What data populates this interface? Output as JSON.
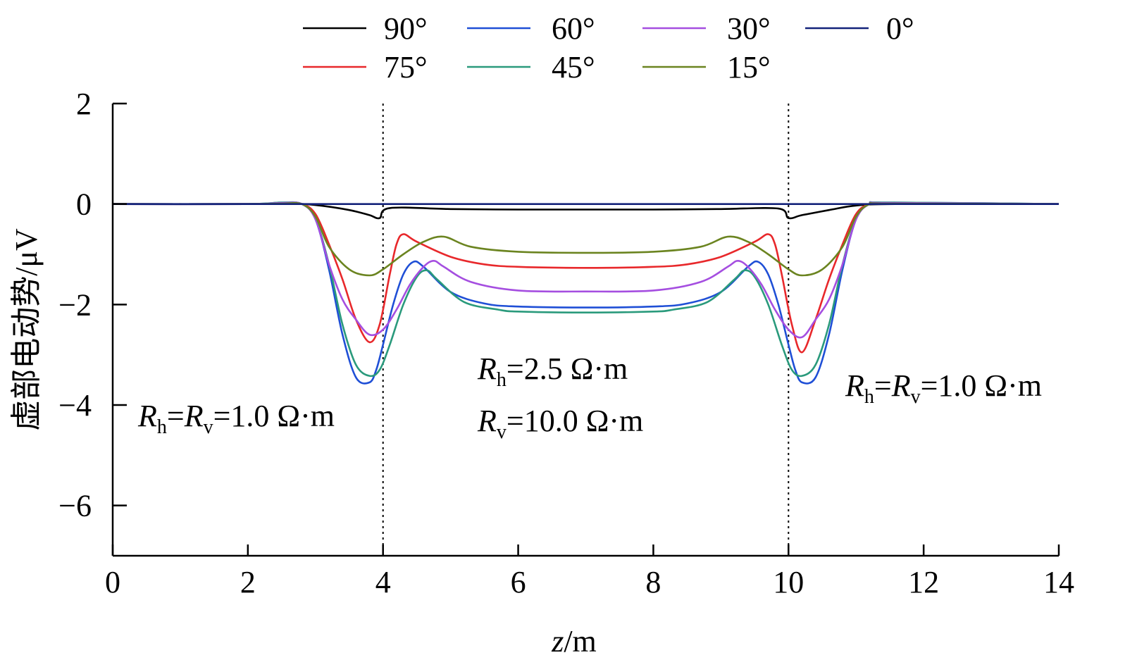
{
  "chart_data": {
    "type": "line",
    "xlabel": {
      "italic": "z",
      "rest": "/m"
    },
    "ylabel": "虚部电动势/μV",
    "xlim": [
      0,
      14
    ],
    "ylim": [
      -7,
      2
    ],
    "xticks": [
      "0",
      "2",
      "4",
      "6",
      "8",
      "10",
      "12",
      "14"
    ],
    "xtick_values": [
      0,
      2,
      4,
      6,
      8,
      10,
      12,
      14
    ],
    "yticks": [
      "2",
      "0",
      "−2",
      "−4",
      "−6"
    ],
    "ytick_values": [
      2,
      0,
      -2,
      -4,
      -6
    ],
    "boundaries": [
      4.0,
      10.0
    ],
    "legend": {
      "placement": "top"
    },
    "series": [
      {
        "name": "90°",
        "color": "#000000",
        "x": [
          0,
          2.0,
          2.6,
          3.0,
          3.5,
          3.8,
          3.95,
          4.1,
          5.0,
          6.0,
          7.0,
          8.0,
          9.0,
          9.85,
          10.0,
          10.2,
          10.6,
          11.0,
          11.6,
          14
        ],
        "y": [
          0,
          0,
          0.01,
          -0.02,
          -0.12,
          -0.22,
          -0.28,
          -0.08,
          -0.1,
          -0.11,
          -0.11,
          -0.11,
          -0.1,
          -0.09,
          -0.28,
          -0.22,
          -0.12,
          -0.03,
          0.0,
          0
        ]
      },
      {
        "name": "75°",
        "color": "#e8282b",
        "x": [
          0,
          2.0,
          2.5,
          2.8,
          3.0,
          3.2,
          3.4,
          3.6,
          3.8,
          3.95,
          4.1,
          4.2,
          4.3,
          4.5,
          5.0,
          5.5,
          6.0,
          7.0,
          8.0,
          8.5,
          9.0,
          9.5,
          9.7,
          9.8,
          9.9,
          10.05,
          10.2,
          10.4,
          10.6,
          10.8,
          11.0,
          11.2,
          11.5,
          14
        ],
        "y": [
          0,
          0,
          0.02,
          0.0,
          -0.2,
          -0.8,
          -1.5,
          -2.3,
          -2.75,
          -2.4,
          -1.4,
          -0.8,
          -0.6,
          -0.75,
          -1.05,
          -1.2,
          -1.25,
          -1.27,
          -1.25,
          -1.2,
          -1.05,
          -0.75,
          -0.6,
          -0.8,
          -1.4,
          -2.4,
          -2.95,
          -2.3,
          -1.5,
          -0.8,
          -0.2,
          0.0,
          0.02,
          0
        ]
      },
      {
        "name": "60°",
        "color": "#1f4fd6",
        "x": [
          0,
          2.0,
          2.5,
          2.8,
          3.0,
          3.2,
          3.4,
          3.6,
          3.8,
          3.9,
          4.0,
          4.15,
          4.3,
          4.45,
          4.6,
          5.0,
          5.5,
          6.0,
          7.0,
          8.0,
          8.5,
          9.0,
          9.4,
          9.55,
          9.7,
          9.85,
          10.0,
          10.1,
          10.2,
          10.4,
          10.6,
          10.8,
          11.0,
          11.2,
          11.5,
          14
        ],
        "y": [
          0,
          0,
          0.03,
          0.0,
          -0.3,
          -1.3,
          -2.6,
          -3.45,
          -3.55,
          -3.3,
          -2.8,
          -2.0,
          -1.4,
          -1.15,
          -1.25,
          -1.75,
          -1.98,
          -2.04,
          -2.06,
          -2.04,
          -1.98,
          -1.75,
          -1.25,
          -1.15,
          -1.4,
          -2.0,
          -2.8,
          -3.3,
          -3.55,
          -3.45,
          -2.6,
          -1.3,
          -0.3,
          0.0,
          0.03,
          0
        ]
      },
      {
        "name": "45°",
        "color": "#2a9a7c",
        "x": [
          0,
          2.0,
          2.5,
          2.8,
          3.0,
          3.2,
          3.4,
          3.6,
          3.8,
          3.95,
          4.1,
          4.3,
          4.5,
          4.65,
          4.8,
          5.2,
          5.7,
          6.0,
          7.0,
          8.0,
          8.3,
          8.8,
          9.2,
          9.35,
          9.5,
          9.7,
          9.9,
          10.05,
          10.2,
          10.4,
          10.6,
          10.8,
          11.0,
          11.2,
          11.5,
          14
        ],
        "y": [
          0,
          0,
          0.03,
          0.0,
          -0.3,
          -1.2,
          -2.4,
          -3.2,
          -3.42,
          -3.3,
          -2.8,
          -2.0,
          -1.45,
          -1.32,
          -1.5,
          -1.95,
          -2.1,
          -2.14,
          -2.16,
          -2.14,
          -2.1,
          -1.95,
          -1.5,
          -1.32,
          -1.45,
          -2.0,
          -2.8,
          -3.3,
          -3.42,
          -3.2,
          -2.4,
          -1.2,
          -0.3,
          0.0,
          0.03,
          0
        ]
      },
      {
        "name": "30°",
        "color": "#a54ee0",
        "x": [
          0,
          2.0,
          2.5,
          2.8,
          3.0,
          3.2,
          3.4,
          3.6,
          3.8,
          4.0,
          4.2,
          4.4,
          4.6,
          4.75,
          4.9,
          5.3,
          6.0,
          7.0,
          8.0,
          8.7,
          9.1,
          9.25,
          9.4,
          9.6,
          9.8,
          10.0,
          10.2,
          10.4,
          10.6,
          10.8,
          11.0,
          11.2,
          11.5,
          14
        ],
        "y": [
          0,
          0,
          0.02,
          0.0,
          -0.3,
          -1.2,
          -1.9,
          -2.3,
          -2.6,
          -2.5,
          -2.1,
          -1.6,
          -1.25,
          -1.13,
          -1.25,
          -1.55,
          -1.72,
          -1.74,
          -1.72,
          -1.55,
          -1.25,
          -1.13,
          -1.25,
          -1.6,
          -2.1,
          -2.5,
          -2.65,
          -2.3,
          -1.9,
          -1.2,
          -0.3,
          0.0,
          0.02,
          0
        ]
      },
      {
        "name": "15°",
        "color": "#6b8420",
        "x": [
          0,
          2.0,
          2.5,
          2.8,
          3.0,
          3.2,
          3.5,
          3.8,
          4.0,
          4.3,
          4.6,
          4.9,
          5.3,
          6.0,
          7.0,
          8.0,
          8.7,
          9.1,
          9.4,
          9.7,
          10.0,
          10.2,
          10.5,
          10.8,
          11.0,
          11.2,
          11.5,
          14
        ],
        "y": [
          0,
          0,
          0.01,
          0.0,
          -0.25,
          -0.85,
          -1.3,
          -1.42,
          -1.3,
          -1.0,
          -0.75,
          -0.65,
          -0.85,
          -0.95,
          -0.97,
          -0.95,
          -0.85,
          -0.65,
          -0.75,
          -1.0,
          -1.3,
          -1.42,
          -1.3,
          -0.85,
          -0.25,
          0.0,
          0.01,
          0
        ]
      },
      {
        "name": "0°",
        "color": "#14237a",
        "x": [
          0,
          14
        ],
        "y": [
          0,
          0
        ]
      }
    ],
    "annotations": [
      {
        "R1": "R",
        "s1": "h",
        "eq": "=",
        "R2": "R",
        "s2": "v",
        "tail": "=1.0 Ω·m"
      },
      {
        "R1": "R",
        "s1": "h",
        "tail": "=2.5 Ω·m"
      },
      {
        "R1": "R",
        "s1": "v",
        "tail": "=10.0 Ω·m"
      },
      {
        "R1": "R",
        "s1": "h",
        "eq": "=",
        "R2": "R",
        "s2": "v",
        "tail": "=1.0 Ω·m"
      }
    ]
  }
}
